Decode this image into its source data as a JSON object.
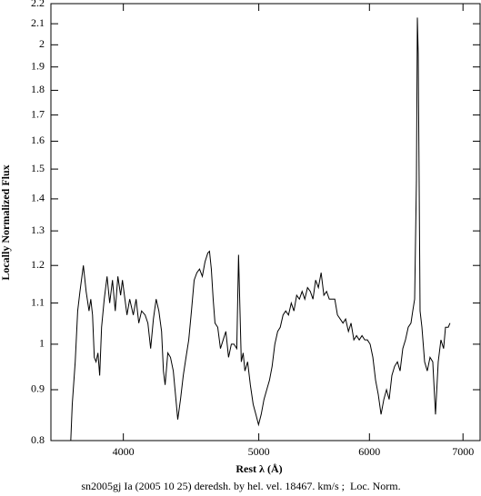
{
  "chart_data": {
    "type": "line",
    "x_label": "Rest λ (Å)",
    "y_label": "Locally Normalized Flux",
    "caption": "sn2005gj Ia (2005 10 25) deredsh. by hel. vel. 18467. km/s ;  Loc. Norm.",
    "xscale": "log",
    "yscale": "log",
    "color": "#000000",
    "xlim": [
      3550,
      7200
    ],
    "xticks": [
      4000,
      5000,
      6000,
      7000
    ],
    "ylim": [
      0.8,
      2.2
    ],
    "yticks": [
      0.8,
      0.9,
      1,
      1.1,
      1.2,
      1.3,
      1.4,
      1.5,
      1.6,
      1.7,
      1.8,
      1.9,
      2,
      2.1,
      2.2
    ],
    "x": [
      3668,
      3677,
      3695,
      3710,
      3724,
      3745,
      3762,
      3780,
      3791,
      3802,
      3813,
      3824,
      3836,
      3847,
      3859,
      3876,
      3894,
      3911,
      3929,
      3947,
      3964,
      3982,
      3994,
      4024,
      4042,
      4066,
      4085,
      4103,
      4122,
      4146,
      4165,
      4184,
      4203,
      4222,
      4241,
      4260,
      4273,
      4285,
      4304,
      4323,
      4343,
      4362,
      4375,
      4395,
      4415,
      4435,
      4455,
      4475,
      4495,
      4515,
      4535,
      4556,
      4576,
      4597,
      4610,
      4624,
      4638,
      4652,
      4673,
      4694,
      4715,
      4736,
      4757,
      4779,
      4800,
      4822,
      4836,
      4858,
      4873,
      4887,
      4909,
      4931,
      4954,
      4976,
      4998,
      5020,
      5043,
      5066,
      5089,
      5111,
      5134,
      5158,
      5180,
      5204,
      5227,
      5251,
      5275,
      5298,
      5322,
      5346,
      5370,
      5394,
      5418,
      5443,
      5467,
      5491,
      5516,
      5541,
      5566,
      5591,
      5616,
      5641,
      5667,
      5692,
      5718,
      5744,
      5769,
      5796,
      5821,
      5848,
      5874,
      5900,
      5927,
      5954,
      5980,
      6007,
      6034,
      6061,
      6088,
      6116,
      6144,
      6171,
      6198,
      6226,
      6254,
      6283,
      6311,
      6339,
      6367,
      6396,
      6425,
      6444,
      6464,
      6483,
      6493,
      6502,
      6512,
      6522,
      6542,
      6571,
      6600,
      6630,
      6660,
      6690,
      6720,
      6750,
      6780,
      6801,
      6832,
      6852
    ],
    "values": [
      0.8,
      0.87,
      0.96,
      1.08,
      1.13,
      1.2,
      1.13,
      1.08,
      1.11,
      1.07,
      0.97,
      0.96,
      0.98,
      0.93,
      1.04,
      1.11,
      1.17,
      1.1,
      1.16,
      1.08,
      1.17,
      1.12,
      1.16,
      1.07,
      1.11,
      1.07,
      1.11,
      1.05,
      1.08,
      1.07,
      1.05,
      0.99,
      1.06,
      1.11,
      1.08,
      1.03,
      0.94,
      0.91,
      0.98,
      0.97,
      0.94,
      0.88,
      0.84,
      0.88,
      0.93,
      0.97,
      1.01,
      1.08,
      1.16,
      1.18,
      1.19,
      1.17,
      1.21,
      1.235,
      1.24,
      1.19,
      1.11,
      1.05,
      1.04,
      0.99,
      1.01,
      1.03,
      0.97,
      1.0,
      1.0,
      0.99,
      1.23,
      0.96,
      0.98,
      0.94,
      0.96,
      0.91,
      0.87,
      0.85,
      0.83,
      0.85,
      0.88,
      0.9,
      0.92,
      0.95,
      1.0,
      1.03,
      1.04,
      1.07,
      1.08,
      1.07,
      1.1,
      1.08,
      1.12,
      1.11,
      1.13,
      1.11,
      1.14,
      1.13,
      1.11,
      1.16,
      1.14,
      1.18,
      1.12,
      1.13,
      1.11,
      1.11,
      1.11,
      1.07,
      1.06,
      1.05,
      1.06,
      1.03,
      1.05,
      1.01,
      1.02,
      1.01,
      1.02,
      1.01,
      1.01,
      1.0,
      0.97,
      0.92,
      0.89,
      0.85,
      0.88,
      0.9,
      0.88,
      0.93,
      0.95,
      0.96,
      0.94,
      0.99,
      1.01,
      1.04,
      1.05,
      1.08,
      1.11,
      1.46,
      2.13,
      1.96,
      1.46,
      1.08,
      1.04,
      0.96,
      0.94,
      0.97,
      0.96,
      0.85,
      0.96,
      1.01,
      0.99,
      1.04,
      1.04,
      1.05
    ]
  }
}
